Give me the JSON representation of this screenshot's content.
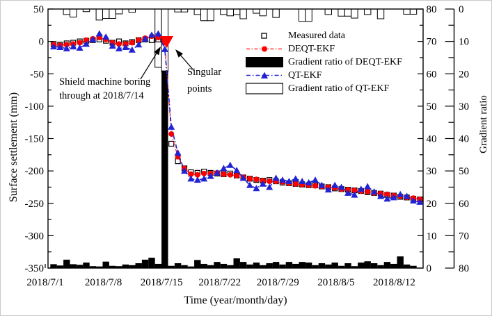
{
  "figure": {
    "x_title": "Time (year/month/day)",
    "y_left_title": "Surface settlement (mm)",
    "y_right_title": "Gradient ratio"
  },
  "legend": {
    "items": [
      {
        "label": "Measured data",
        "marker": "open-square"
      },
      {
        "label": "DEQT-EKF",
        "marker": "red-line-with-circle"
      },
      {
        "label": "Gradient ratio of DEQT-EKF",
        "marker": "black-filled-bar"
      },
      {
        "label": "QT-EKF",
        "marker": "blue-line-with-triangle"
      },
      {
        "label": "Gradient ratio of QT-EKF",
        "marker": "open-bar"
      }
    ]
  },
  "annotations": {
    "shield": {
      "line1": "Shield machine boring",
      "line2": "through at 2018/7/14"
    },
    "singular": {
      "line1": "Singular",
      "line2": "points"
    }
  },
  "colors": {
    "deqt": "#ff0000",
    "qt": "#2222d5",
    "bar_black": "#000000",
    "bar_white": "#ffffff",
    "singular_marker": "#ff0000"
  },
  "chart_data": {
    "type": "line+bar",
    "x_axis": {
      "title": "Time (year/month/day)",
      "unit": "days since 2018/7/1",
      "ticks": [
        {
          "label": "2018/7/1",
          "day": 0
        },
        {
          "label": "2018/7/8",
          "day": 7
        },
        {
          "label": "2018/7/15",
          "day": 14
        },
        {
          "label": "2018/7/22",
          "day": 21
        },
        {
          "label": "2018/7/29",
          "day": 28
        },
        {
          "label": "2018/8/5",
          "day": 35
        },
        {
          "label": "2018/8/12",
          "day": 42
        }
      ]
    },
    "y_left": {
      "title": "Surface settlement (mm)",
      "min": -350,
      "max": 50,
      "major_step": 50,
      "minor_step": 25,
      "tick_labels": [
        [
          "50",
          50
        ],
        [
          "0",
          0
        ],
        [
          "-50",
          -50
        ],
        [
          "-100",
          -100
        ],
        [
          "-150",
          -150
        ],
        [
          "-200",
          -200
        ],
        [
          "-250",
          -250
        ],
        [
          "-300",
          -300
        ],
        [
          "-350",
          -350
        ]
      ]
    },
    "y_right_inner": {
      "min": 0,
      "max": 80,
      "direction": "up",
      "major_step": 10,
      "minor_step": 5,
      "tick_labels": [
        [
          "80",
          80
        ],
        [
          "70",
          70
        ],
        [
          "60",
          60
        ],
        [
          "50",
          50
        ],
        [
          "40",
          40
        ],
        [
          "30",
          30
        ],
        [
          "20",
          20
        ],
        [
          "10",
          10
        ],
        [
          "0",
          0
        ]
      ]
    },
    "y_right_outer": {
      "title": "Gradient ratio",
      "min": 0,
      "max": 80,
      "direction": "down",
      "major_step": 10,
      "minor_step": 5,
      "tick_labels": [
        [
          "0",
          0
        ],
        [
          "10",
          10
        ],
        [
          "20",
          20
        ],
        [
          "30",
          30
        ],
        [
          "40",
          40
        ],
        [
          "50",
          50
        ],
        [
          "60",
          60
        ],
        [
          "70",
          70
        ],
        [
          "80",
          80
        ]
      ]
    },
    "sample_note": "57 samples plotted left to right across the observation window; singular spike aligned with 2018/7/14 boring event",
    "series": [
      {
        "name": "Measured data",
        "type": "scatter",
        "marker": "open-square",
        "color": "#000000",
        "values": [
          -4,
          -5,
          -3,
          -2,
          0,
          1,
          2,
          3,
          1,
          -2,
          0,
          -3,
          -1,
          2,
          3,
          2,
          3,
          2,
          -158,
          -185,
          -196,
          -202,
          -203,
          -201,
          -203,
          -204,
          -205,
          -204,
          -207,
          -210,
          -212,
          -214,
          -215,
          -214,
          -216,
          -218,
          -219,
          -220,
          -221,
          -222,
          -222,
          -224,
          -225,
          -227,
          -228,
          -229,
          -230,
          -231,
          -233,
          -234,
          -235,
          -237,
          -238,
          -240,
          -241,
          -243,
          -244
        ]
      },
      {
        "name": "DEQT-EKF",
        "type": "line",
        "marker": "filled-circle",
        "color": "#ff0000",
        "values": [
          -5,
          -6,
          -5,
          -4,
          -2,
          2,
          4,
          6,
          3,
          -2,
          -4,
          -4,
          -2,
          2,
          5,
          8,
          6,
          -2,
          -143,
          -178,
          -196,
          -205,
          -206,
          -204,
          -204,
          -203,
          -205,
          -206,
          -207,
          -210,
          -212,
          -213,
          -215,
          -216,
          -216,
          -217,
          -219,
          -220,
          -221,
          -222,
          -223,
          -224,
          -225,
          -226,
          -228,
          -229,
          -230,
          -231,
          -232,
          -234,
          -235,
          -236,
          -238,
          -239,
          -241,
          -242,
          -244
        ]
      },
      {
        "name": "QT-EKF",
        "type": "line",
        "marker": "filled-triangle",
        "color": "#2222d5",
        "values": [
          -8,
          -9,
          -11,
          -8,
          -10,
          -4,
          3,
          12,
          7,
          -7,
          -11,
          -9,
          -13,
          -5,
          4,
          10,
          12,
          -12,
          -132,
          -172,
          -200,
          -212,
          -214,
          -212,
          -208,
          -203,
          -196,
          -191,
          -199,
          -211,
          -222,
          -227,
          -220,
          -225,
          -211,
          -214,
          -216,
          -212,
          -216,
          -218,
          -214,
          -222,
          -229,
          -222,
          -225,
          -234,
          -237,
          -228,
          -224,
          -232,
          -239,
          -243,
          -241,
          -236,
          -239,
          -246,
          -248
        ]
      },
      {
        "name": "Gradient ratio of DEQT-EKF",
        "type": "bar",
        "baseline": "bottom",
        "axis": "y_right_inner",
        "color": "#000000",
        "values": [
          1.2,
          0.8,
          2.6,
          1.2,
          1.0,
          1.7,
          0.6,
          0.5,
          2.0,
          0.7,
          0.6,
          1.1,
          0.9,
          1.5,
          2.6,
          3.2,
          1.3,
          61,
          0.7,
          1.5,
          0.9,
          0.5,
          2.5,
          1.3,
          0.9,
          1.9,
          1.3,
          0.9,
          3.0,
          1.9,
          1.1,
          1.7,
          0.9,
          1.5,
          1.9,
          1.1,
          1.9,
          1.3,
          1.9,
          1.7,
          0.9,
          1.5,
          1.1,
          1.7,
          0.7,
          1.5,
          0.6,
          1.7,
          2.1,
          1.5,
          0.9,
          1.9,
          1.3,
          3.6,
          1.1,
          0.7,
          0
        ]
      },
      {
        "name": "Gradient ratio of QT-EKF",
        "type": "bar",
        "baseline": "top",
        "axis": "y_right_outer",
        "color": "#ffffff",
        "values": [
          0,
          0,
          1.7,
          2.5,
          0,
          0.8,
          0,
          3.4,
          2.9,
          2.9,
          1.5,
          0,
          1.0,
          0,
          0,
          0,
          18,
          19.5,
          0,
          0.9,
          0.9,
          0,
          1.7,
          3.6,
          3.6,
          0,
          1.7,
          2.1,
          1.7,
          3.0,
          0,
          1.3,
          2.1,
          0,
          2.6,
          0,
          0,
          0,
          3.8,
          3.8,
          0,
          0,
          1.7,
          0,
          2.2,
          2.2,
          2.8,
          0,
          1.7,
          0,
          3.0,
          0,
          0,
          0,
          1.6,
          1.6,
          0
        ]
      }
    ],
    "singular_point": {
      "settlement": 0,
      "marker": "large-red-down-triangle",
      "note": "spike bars reach ~61 (DEQT) and ~19.5 (QT) gradient ratio"
    }
  }
}
